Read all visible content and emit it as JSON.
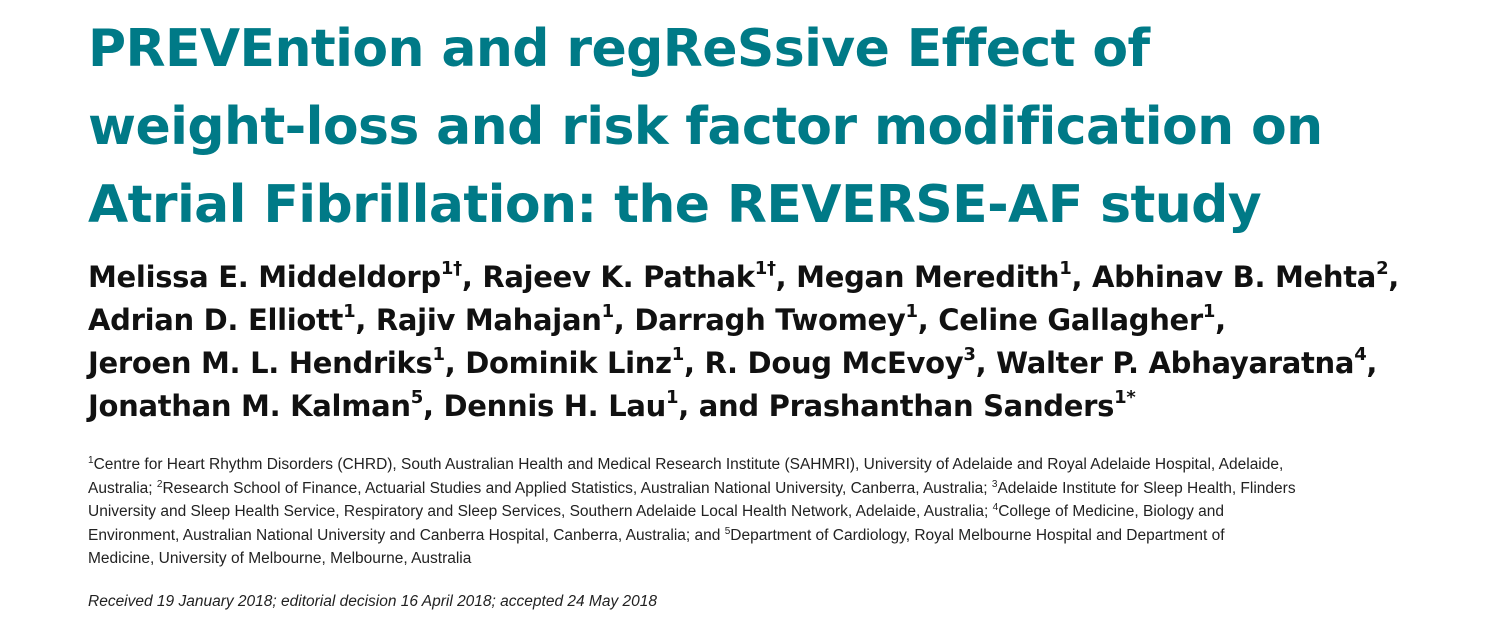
{
  "title": {
    "lines": [
      "PREVEntion and regReSsive Effect of",
      "weight-loss and risk factor modification on",
      "Atrial Fibrillation: the REVERSE-AF study"
    ]
  },
  "authors": {
    "line1": {
      "a1": "Melissa E. Middeldorp",
      "a1_sup": "1†",
      "sep1": ", ",
      "a2": "Rajeev K. Pathak",
      "a2_sup": "1†",
      "sep2": ", ",
      "a3": "Megan Meredith",
      "a3_sup": "1",
      "sep3": ", ",
      "a4": "Abhinav B. Mehta",
      "a4_sup": "2",
      "sep4": ","
    },
    "line2": {
      "a1": "Adrian D. Elliott",
      "a1_sup": "1",
      "sep1": ", ",
      "a2": "Rajiv Mahajan",
      "a2_sup": "1",
      "sep2": ", ",
      "a3": "Darragh Twomey",
      "a3_sup": "1",
      "sep3": ", ",
      "a4": "Celine Gallagher",
      "a4_sup": "1",
      "sep4": ","
    },
    "line3": {
      "a1": "Jeroen M. L. Hendriks",
      "a1_sup": "1",
      "sep1": ", ",
      "a2": "Dominik Linz",
      "a2_sup": "1",
      "sep2": ", ",
      "a3": "R. Doug McEvoy",
      "a3_sup": "3",
      "sep3": ", ",
      "a4": "Walter P. Abhayaratna",
      "a4_sup": "4",
      "sep4": ","
    },
    "line4": {
      "a1": "Jonathan M. Kalman",
      "a1_sup": "5",
      "sep1": ", ",
      "a2": "Dennis H. Lau",
      "a2_sup": "1",
      "sep2": ", and ",
      "a3": "Prashanthan Sanders",
      "a3_sup": "1*"
    }
  },
  "affiliations": {
    "line1": {
      "s1": "1",
      "t1": "Centre for Heart Rhythm Disorders (CHRD), South Australian Health and Medical Research Institute (SAHMRI), University of Adelaide and Royal Adelaide Hospital, Adelaide,"
    },
    "line2": {
      "t1": "Australia; ",
      "s2": "2",
      "t2": "Research School of Finance, Actuarial Studies and Applied Statistics, Australian National University, Canberra, Australia; ",
      "s3": "3",
      "t3": "Adelaide Institute for Sleep Health, Flinders"
    },
    "line3": {
      "t1": "University and Sleep Health Service, Respiratory and Sleep Services, Southern Adelaide Local Health Network, Adelaide, Australia; ",
      "s4": "4",
      "t2": "College of Medicine, Biology and"
    },
    "line4": {
      "t1": "Environment, Australian National University and Canberra Hospital, Canberra, Australia; and ",
      "s5": "5",
      "t2": "Department of Cardiology, Royal Melbourne Hospital and Department of"
    },
    "line5": {
      "t1": "Medicine, University of Melbourne, Melbourne, Australia"
    }
  },
  "received": "Received 19 January 2018; editorial decision 16 April 2018; accepted 24 May 2018",
  "colors": {
    "title": "#007a87",
    "authors": "#111111",
    "body_text": "#222222"
  }
}
